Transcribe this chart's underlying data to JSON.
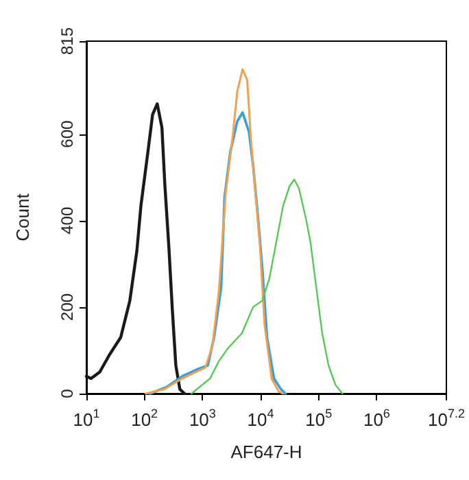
{
  "chart_data": {
    "type": "line",
    "xlabel": "AF647-H",
    "ylabel": "Count",
    "log": "x",
    "marker": "none",
    "grid": false,
    "xlim": [
      10,
      15848932
    ],
    "xticks": [
      {
        "value": 10,
        "label": "10$^{1}$"
      },
      {
        "value": 100,
        "label": "10$^{2}$"
      },
      {
        "value": 1000,
        "label": "10$^{3}$"
      },
      {
        "value": 10000,
        "label": "10$^{4}$"
      },
      {
        "value": 100000,
        "label": "10$^{5}$"
      },
      {
        "value": 1000000,
        "label": "10$^{6}$"
      },
      {
        "value": 15848932,
        "label": "10$^{7.2}$"
      }
    ],
    "ylim": [
      0,
      815
    ],
    "yticks": [
      0,
      200,
      400,
      600,
      815
    ],
    "series": [
      {
        "color": "#1a1a1a",
        "x": [
          10,
          12,
          17,
          25,
          39,
          56,
          74,
          87,
          115,
          138,
          166,
          200,
          224,
          263,
          302,
          347,
          407,
          490
        ],
        "values": [
          40,
          35,
          50,
          90,
          130,
          215,
          330,
          435,
          560,
          645,
          670,
          615,
          485,
          340,
          195,
          65,
          10,
          0
        ]
      },
      {
        "color": "#3aa0d8",
        "x": [
          125,
          240,
          447,
          776,
          1230,
          1580,
          2090,
          2400,
          3020,
          3980,
          4900,
          6310,
          7410,
          8910,
          10700,
          12900,
          17000,
          22400,
          26900
        ],
        "values": [
          0,
          15,
          40,
          55,
          65,
          130,
          245,
          455,
          560,
          630,
          650,
          605,
          530,
          415,
          290,
          130,
          35,
          10,
          0
        ]
      },
      {
        "color": "#f0a050",
        "x": [
          105,
          219,
          447,
          776,
          1120,
          1480,
          1910,
          2510,
          3310,
          3980,
          4900,
          5890,
          6760,
          8510,
          9770,
          11700,
          15500,
          20400,
          24500
        ],
        "values": [
          0,
          10,
          35,
          50,
          60,
          110,
          235,
          465,
          595,
          700,
          750,
          725,
          595,
          435,
          340,
          160,
          35,
          5,
          0
        ]
      },
      {
        "color": "#50c850",
        "x": [
          646,
          1350,
          1910,
          2750,
          4790,
          7410,
          10700,
          14100,
          18600,
          24500,
          31600,
          38000,
          45700,
          60300,
          72400,
          87100,
          115000,
          148000,
          195000,
          257000
        ],
        "values": [
          0,
          35,
          75,
          105,
          140,
          200,
          215,
          265,
          350,
          435,
          480,
          495,
          475,
          405,
          350,
          265,
          140,
          65,
          20,
          0
        ]
      }
    ]
  }
}
